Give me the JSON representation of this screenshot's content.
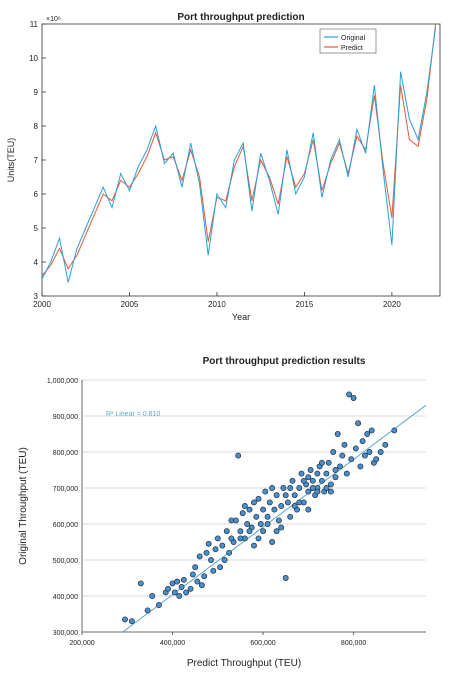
{
  "chart_data": [
    {
      "type": "line",
      "title": "Port throughput prediction",
      "xlabel": "Year",
      "ylabel": "Units(TEU)",
      "y_exponent": "×10⁶",
      "xlim": [
        2000,
        2022.75
      ],
      "ylim": [
        3,
        11
      ],
      "x_ticks": [
        2000,
        2005,
        2010,
        2015,
        2020
      ],
      "y_ticks": [
        3,
        4,
        5,
        6,
        7,
        8,
        9,
        10,
        11
      ],
      "grid": false,
      "legend_position": "top-right",
      "series": [
        {
          "name": "Original",
          "color": "#2a9fd8",
          "x": [
            2000.0,
            2000.5,
            2001.0,
            2001.5,
            2002.0,
            2002.5,
            2003.0,
            2003.5,
            2004.0,
            2004.5,
            2005.0,
            2005.5,
            2006.0,
            2006.5,
            2007.0,
            2007.5,
            2008.0,
            2008.5,
            2009.0,
            2009.5,
            2010.0,
            2010.5,
            2011.0,
            2011.5,
            2012.0,
            2012.5,
            2013.0,
            2013.5,
            2014.0,
            2014.5,
            2015.0,
            2015.5,
            2016.0,
            2016.5,
            2017.0,
            2017.5,
            2018.0,
            2018.5,
            2019.0,
            2019.5,
            2020.0,
            2020.5,
            2021.0,
            2021.5,
            2022.0,
            2022.5
          ],
          "y": [
            3.5,
            4.0,
            4.7,
            3.4,
            4.4,
            5.0,
            5.6,
            6.2,
            5.6,
            6.6,
            6.1,
            6.8,
            7.3,
            8.0,
            6.9,
            7.2,
            6.2,
            7.5,
            6.3,
            4.2,
            6.0,
            5.6,
            7.0,
            7.5,
            5.5,
            7.2,
            6.4,
            5.4,
            7.3,
            6.0,
            6.5,
            7.8,
            5.9,
            7.0,
            7.6,
            6.5,
            7.9,
            7.2,
            9.2,
            6.7,
            4.5,
            9.6,
            8.2,
            7.6,
            9.0,
            10.9
          ]
        },
        {
          "name": "Predict",
          "color": "#e05a3a",
          "x": [
            2000.0,
            2000.5,
            2001.0,
            2001.5,
            2002.0,
            2002.5,
            2003.0,
            2003.5,
            2004.0,
            2004.5,
            2005.0,
            2005.5,
            2006.0,
            2006.5,
            2007.0,
            2007.5,
            2008.0,
            2008.5,
            2009.0,
            2009.5,
            2010.0,
            2010.5,
            2011.0,
            2011.5,
            2012.0,
            2012.5,
            2013.0,
            2013.5,
            2014.0,
            2014.5,
            2015.0,
            2015.5,
            2016.0,
            2016.5,
            2017.0,
            2017.5,
            2018.0,
            2018.5,
            2019.0,
            2019.5,
            2020.0,
            2020.5,
            2021.0,
            2021.5,
            2022.0,
            2022.5
          ],
          "y": [
            3.6,
            3.9,
            4.4,
            3.8,
            4.2,
            4.8,
            5.4,
            6.0,
            5.8,
            6.4,
            6.2,
            6.6,
            7.1,
            7.8,
            7.0,
            7.1,
            6.4,
            7.3,
            6.5,
            4.6,
            5.9,
            5.8,
            6.8,
            7.4,
            5.8,
            7.0,
            6.5,
            5.7,
            7.1,
            6.2,
            6.6,
            7.6,
            6.1,
            6.9,
            7.5,
            6.6,
            7.7,
            7.3,
            8.9,
            6.9,
            5.3,
            9.2,
            7.6,
            7.4,
            8.8,
            11.0
          ]
        }
      ]
    },
    {
      "type": "scatter",
      "title": "Port throughput prediction results",
      "xlabel": "Predict Throughput (TEU)",
      "ylabel": "Original Throughput (TEU)",
      "xlim": [
        200000,
        960000
      ],
      "ylim": [
        300000,
        1000000
      ],
      "x_ticks": [
        200000,
        400000,
        600000,
        800000
      ],
      "x_tick_labels": [
        "200,000",
        "400,000",
        "600,000",
        "800,000"
      ],
      "y_ticks": [
        300000,
        400000,
        500000,
        600000,
        700000,
        800000,
        900000,
        1000000
      ],
      "y_tick_labels": [
        "300,000",
        "400,000",
        "500,000",
        "600,000",
        "700,000",
        "800,000",
        "900,000",
        "1,000,000"
      ],
      "grid": "horizontal",
      "annotation": "R² Linear = 0.810",
      "fit_line": {
        "color": "#5aa7d6",
        "x": [
          290000,
          960000
        ],
        "y": [
          300000,
          930000
        ]
      },
      "point_color": "#4a90c8",
      "points": [
        [
          295000,
          335000
        ],
        [
          310000,
          330000
        ],
        [
          330000,
          435000
        ],
        [
          345000,
          360000
        ],
        [
          355000,
          400000
        ],
        [
          370000,
          375000
        ],
        [
          385000,
          410000
        ],
        [
          390000,
          420000
        ],
        [
          400000,
          435000
        ],
        [
          405000,
          410000
        ],
        [
          410000,
          440000
        ],
        [
          415000,
          400000
        ],
        [
          420000,
          425000
        ],
        [
          425000,
          445000
        ],
        [
          430000,
          410000
        ],
        [
          440000,
          420000
        ],
        [
          445000,
          460000
        ],
        [
          450000,
          480000
        ],
        [
          455000,
          440000
        ],
        [
          460000,
          510000
        ],
        [
          465000,
          430000
        ],
        [
          470000,
          455000
        ],
        [
          475000,
          520000
        ],
        [
          480000,
          545000
        ],
        [
          485000,
          500000
        ],
        [
          490000,
          470000
        ],
        [
          495000,
          530000
        ],
        [
          500000,
          560000
        ],
        [
          505000,
          480000
        ],
        [
          510000,
          540000
        ],
        [
          515000,
          500000
        ],
        [
          520000,
          580000
        ],
        [
          525000,
          520000
        ],
        [
          530000,
          610000
        ],
        [
          535000,
          550000
        ],
        [
          540000,
          610000
        ],
        [
          545000,
          790000
        ],
        [
          550000,
          580000
        ],
        [
          555000,
          630000
        ],
        [
          560000,
          560000
        ],
        [
          565000,
          600000
        ],
        [
          570000,
          640000
        ],
        [
          575000,
          590000
        ],
        [
          580000,
          660000
        ],
        [
          585000,
          620000
        ],
        [
          590000,
          670000
        ],
        [
          595000,
          600000
        ],
        [
          600000,
          640000
        ],
        [
          605000,
          690000
        ],
        [
          610000,
          620000
        ],
        [
          615000,
          660000
        ],
        [
          620000,
          700000
        ],
        [
          625000,
          640000
        ],
        [
          630000,
          680000
        ],
        [
          635000,
          610000
        ],
        [
          640000,
          650000
        ],
        [
          645000,
          700000
        ],
        [
          650000,
          450000
        ],
        [
          655000,
          660000
        ],
        [
          660000,
          620000
        ],
        [
          665000,
          720000
        ],
        [
          670000,
          680000
        ],
        [
          675000,
          640000
        ],
        [
          680000,
          700000
        ],
        [
          685000,
          740000
        ],
        [
          690000,
          660000
        ],
        [
          695000,
          710000
        ],
        [
          700000,
          690000
        ],
        [
          705000,
          750000
        ],
        [
          710000,
          720000
        ],
        [
          715000,
          680000
        ],
        [
          720000,
          700000
        ],
        [
          725000,
          760000
        ],
        [
          730000,
          720000
        ],
        [
          735000,
          690000
        ],
        [
          740000,
          740000
        ],
        [
          745000,
          770000
        ],
        [
          750000,
          710000
        ],
        [
          755000,
          800000
        ],
        [
          760000,
          730000
        ],
        [
          765000,
          850000
        ],
        [
          770000,
          760000
        ],
        [
          775000,
          790000
        ],
        [
          780000,
          820000
        ],
        [
          785000,
          740000
        ],
        [
          790000,
          960000
        ],
        [
          795000,
          780000
        ],
        [
          800000,
          950000
        ],
        [
          805000,
          810000
        ],
        [
          810000,
          880000
        ],
        [
          815000,
          760000
        ],
        [
          820000,
          830000
        ],
        [
          825000,
          790000
        ],
        [
          830000,
          850000
        ],
        [
          835000,
          800000
        ],
        [
          840000,
          860000
        ],
        [
          845000,
          770000
        ],
        [
          850000,
          780000
        ],
        [
          860000,
          800000
        ],
        [
          870000,
          820000
        ],
        [
          890000,
          860000
        ],
        [
          560000,
          650000
        ],
        [
          580000,
          540000
        ],
        [
          600000,
          580000
        ],
        [
          620000,
          550000
        ],
        [
          640000,
          590000
        ],
        [
          660000,
          700000
        ],
        [
          680000,
          660000
        ],
        [
          700000,
          730000
        ],
        [
          720000,
          690000
        ],
        [
          740000,
          700000
        ],
        [
          760000,
          750000
        ],
        [
          700000,
          640000
        ],
        [
          720000,
          740000
        ],
        [
          650000,
          680000
        ],
        [
          630000,
          580000
        ],
        [
          610000,
          600000
        ],
        [
          590000,
          560000
        ],
        [
          570000,
          580000
        ],
        [
          550000,
          560000
        ],
        [
          530000,
          560000
        ],
        [
          690000,
          720000
        ],
        [
          710000,
          700000
        ],
        [
          730000,
          770000
        ],
        [
          750000,
          690000
        ],
        [
          670000,
          650000
        ]
      ]
    }
  ]
}
